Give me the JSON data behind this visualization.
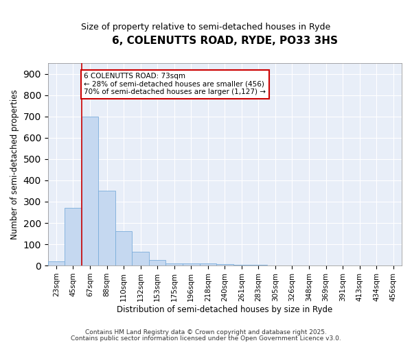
{
  "title": "6, COLENUTTS ROAD, RYDE, PO33 3HS",
  "subtitle": "Size of property relative to semi-detached houses in Ryde",
  "xlabel": "Distribution of semi-detached houses by size in Ryde",
  "ylabel": "Number of semi-detached properties",
  "annotation_title": "6 COLENUTTS ROAD: 73sqm",
  "annotation_line1": "← 28% of semi-detached houses are smaller (456)",
  "annotation_line2": "70% of semi-detached houses are larger (1,127) →",
  "bar_labels": [
    "23sqm",
    "45sqm",
    "67sqm",
    "88sqm",
    "110sqm",
    "132sqm",
    "153sqm",
    "175sqm",
    "196sqm",
    "218sqm",
    "240sqm",
    "261sqm",
    "283sqm",
    "305sqm",
    "326sqm",
    "348sqm",
    "369sqm",
    "391sqm",
    "413sqm",
    "434sqm",
    "456sqm"
  ],
  "bar_values": [
    20,
    270,
    700,
    350,
    160,
    65,
    25,
    10,
    10,
    10,
    8,
    5,
    5,
    0,
    0,
    0,
    0,
    0,
    0,
    0,
    0
  ],
  "bar_color": "#c5d8f0",
  "bar_edge_color": "#7aaddb",
  "red_line_color": "#cc0000",
  "red_line_bar_index": 2,
  "ylim": [
    0,
    950
  ],
  "yticks": [
    0,
    100,
    200,
    300,
    400,
    500,
    600,
    700,
    800,
    900
  ],
  "plot_bg_color": "#e8eef8",
  "figure_bg_color": "#ffffff",
  "grid_color": "#ffffff",
  "footer_line1": "Contains HM Land Registry data © Crown copyright and database right 2025.",
  "footer_line2": "Contains public sector information licensed under the Open Government Licence v3.0."
}
